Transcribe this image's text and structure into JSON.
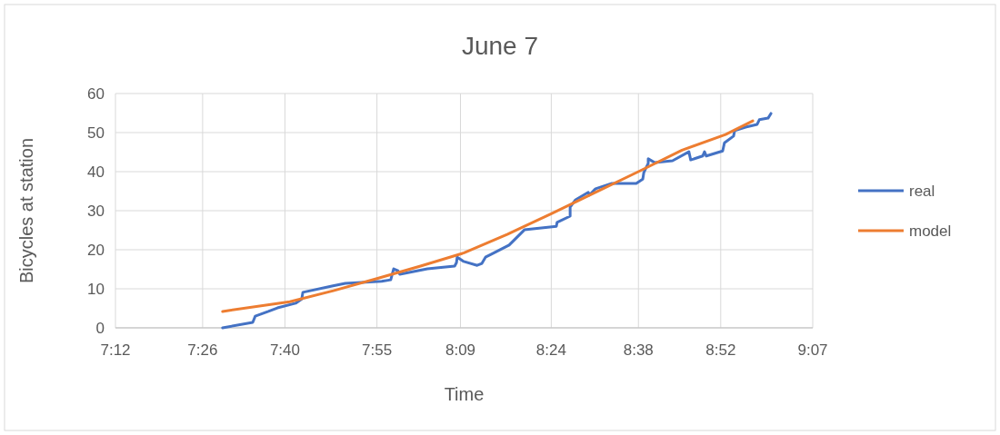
{
  "chart_data": {
    "type": "line",
    "title": "June 7",
    "xlabel": "Time",
    "ylabel": "Bicycles at station",
    "xlim": [
      7.2,
      9.12
    ],
    "xticks": [
      {
        "value": 7.2,
        "label": "7:12"
      },
      {
        "value": 7.44,
        "label": "7:26"
      },
      {
        "value": 7.6667,
        "label": "7:40"
      },
      {
        "value": 7.92,
        "label": "7:55"
      },
      {
        "value": 8.15,
        "label": "8:09"
      },
      {
        "value": 8.4,
        "label": "8:24"
      },
      {
        "value": 8.64,
        "label": "8:38"
      },
      {
        "value": 8.8667,
        "label": "8:52"
      },
      {
        "value": 9.12,
        "label": "9:07"
      }
    ],
    "ylim": [
      0,
      60
    ],
    "yticks": [
      0,
      10,
      20,
      30,
      40,
      50,
      60
    ],
    "grid": true,
    "legend": "right",
    "marker": "none",
    "line_style": "solid",
    "series": [
      {
        "name": "real",
        "color": "#4472c4",
        "x": [
          7.495,
          7.578,
          7.585,
          7.621,
          7.646,
          7.696,
          7.713,
          7.716,
          7.796,
          7.833,
          7.933,
          7.958,
          7.966,
          7.978,
          7.983,
          8.059,
          8.134,
          8.139,
          8.141,
          8.159,
          8.196,
          8.209,
          8.219,
          8.234,
          8.284,
          8.326,
          8.414,
          8.416,
          8.452,
          8.452,
          8.467,
          8.502,
          8.505,
          8.522,
          8.567,
          8.634,
          8.652,
          8.655,
          8.667,
          8.667,
          8.685,
          8.734,
          8.779,
          8.784,
          8.817,
          8.822,
          8.827,
          8.872,
          8.877,
          8.902,
          8.905,
          8.935,
          8.967,
          8.973,
          8.997,
          9.005
        ],
        "values": [
          0,
          1.4,
          3,
          4.2,
          5.1,
          6.3,
          7.4,
          9.1,
          10.7,
          11.4,
          11.9,
          12.3,
          15.1,
          14.6,
          13.7,
          15.1,
          15.8,
          16.7,
          18.1,
          17,
          16,
          16.5,
          18.1,
          18.8,
          21.2,
          25.1,
          26,
          27,
          28.6,
          30.9,
          32.8,
          34.7,
          34,
          35.6,
          37,
          37,
          38.1,
          39.8,
          42.1,
          43.3,
          42.3,
          42.8,
          45.1,
          43,
          44,
          45.1,
          44,
          45.3,
          47.4,
          49.1,
          50.5,
          51.4,
          52.1,
          53.3,
          53.7,
          54.9
        ]
      },
      {
        "name": "model",
        "color": "#ed7d31",
        "x": [
          7.495,
          7.68,
          7.8,
          7.92,
          8.04,
          8.16,
          8.28,
          8.4,
          8.52,
          8.64,
          8.76,
          8.88,
          8.955
        ],
        "values": [
          4.2,
          6.7,
          9.5,
          12.6,
          15.8,
          19.2,
          24,
          29.2,
          34.6,
          40,
          45.5,
          49.5,
          53
        ]
      }
    ]
  }
}
